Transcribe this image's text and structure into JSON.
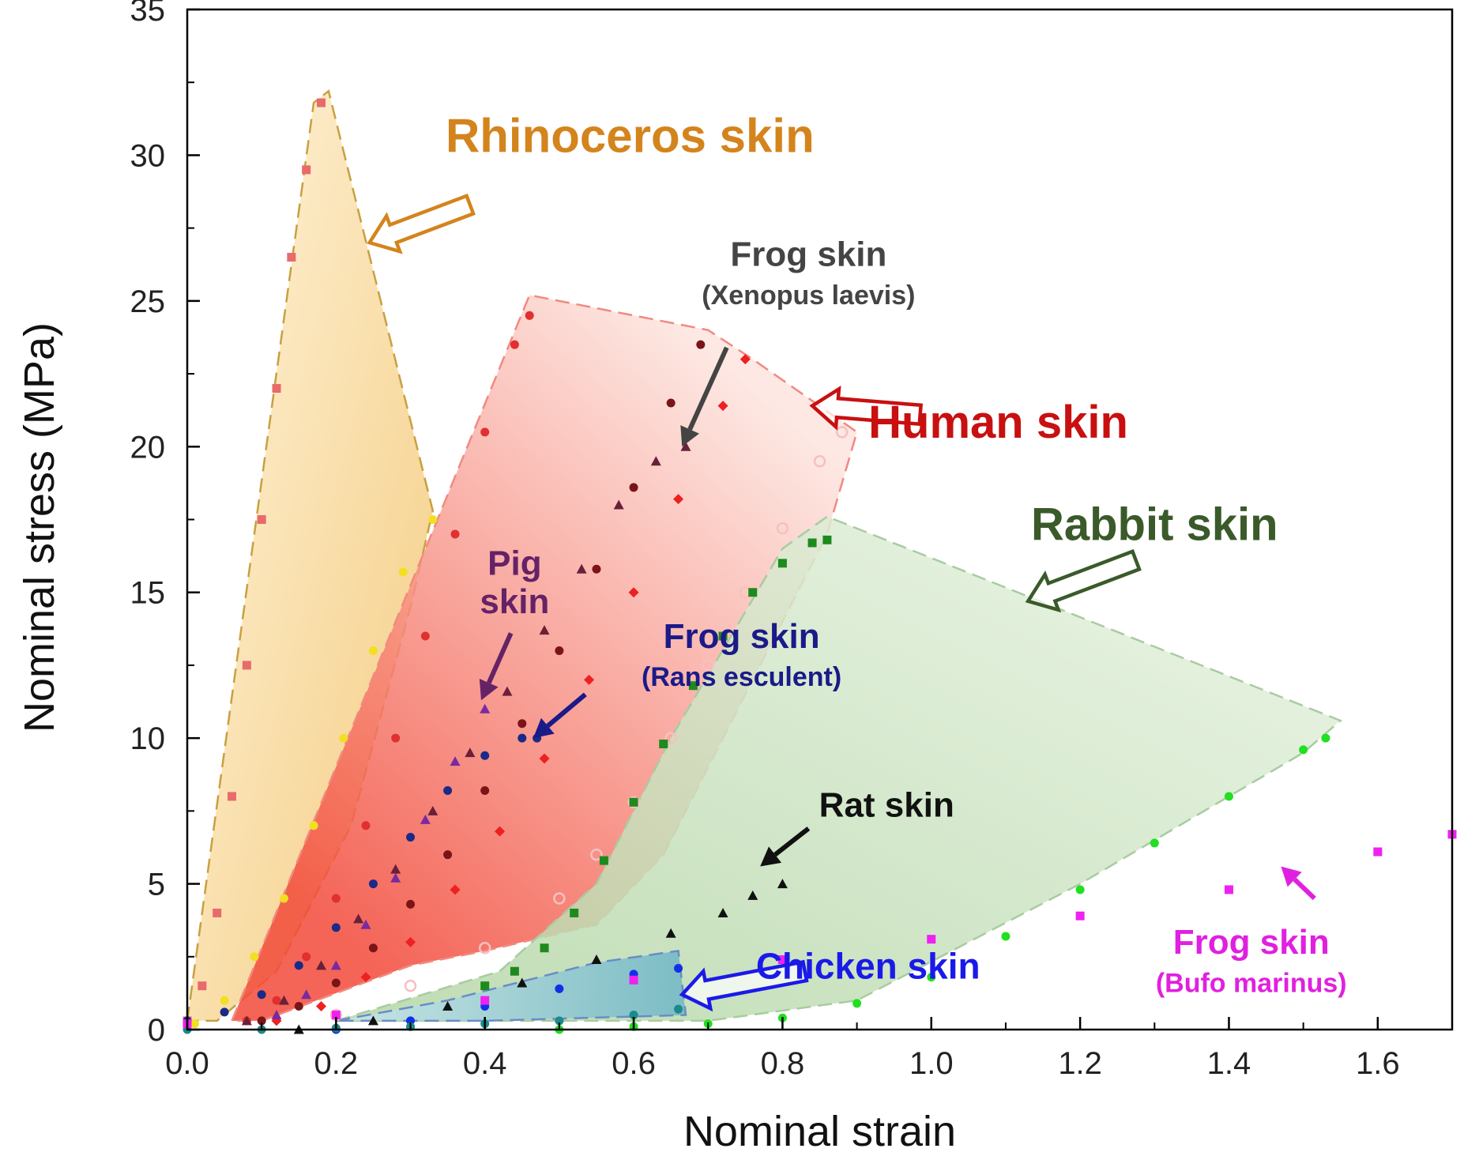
{
  "chart_data": {
    "type": "scatter",
    "title": "",
    "xlabel": "Nominal strain",
    "ylabel": "Nominal stress (MPa)",
    "xlim": [
      0.0,
      1.7
    ],
    "ylim": [
      0,
      35
    ],
    "x_ticks": [
      0.0,
      0.2,
      0.4,
      0.6,
      0.8,
      1.0,
      1.2,
      1.4,
      1.6
    ],
    "x_tick_labels": [
      "0.0",
      "0.2",
      "0.4",
      "0.6",
      "0.8",
      "1.0",
      "1.2",
      "1.4",
      "1.6"
    ],
    "y_ticks": [
      0,
      5,
      10,
      15,
      20,
      25,
      30,
      35
    ],
    "y_tick_labels": [
      "0",
      "5",
      "10",
      "15",
      "20",
      "25",
      "30",
      "35"
    ],
    "grid": false,
    "legend": "none",
    "regions": [
      {
        "label": "Rhinoceros skin",
        "color": "#f2c268",
        "edge": "#c8a040",
        "polygon": [
          [
            0.0,
            0.3
          ],
          [
            0.17,
            31.8
          ],
          [
            0.19,
            32.2
          ],
          [
            0.33,
            17.8
          ],
          [
            0.3,
            14.5
          ],
          [
            0.22,
            7.0
          ],
          [
            0.12,
            2.0
          ],
          [
            0.04,
            0.3
          ]
        ]
      },
      {
        "label": "Human skin",
        "color": "#f47060",
        "edge": "#f08a80",
        "polygon": [
          [
            0.06,
            0.3
          ],
          [
            0.46,
            25.2
          ],
          [
            0.7,
            24.0
          ],
          [
            0.76,
            23.0
          ],
          [
            0.9,
            20.5
          ],
          [
            0.86,
            17.0
          ],
          [
            0.72,
            10.0
          ],
          [
            0.64,
            6.0
          ],
          [
            0.55,
            3.6
          ],
          [
            0.4,
            2.7
          ],
          [
            0.3,
            2.2
          ],
          [
            0.1,
            0.3
          ]
        ]
      },
      {
        "label": "Rabbit skin",
        "color": "#c8e2bc",
        "edge": "#a8cca0",
        "polygon": [
          [
            0.2,
            0.3
          ],
          [
            0.42,
            2.0
          ],
          [
            0.55,
            5.0
          ],
          [
            0.65,
            10.0
          ],
          [
            0.8,
            16.5
          ],
          [
            0.86,
            17.6
          ],
          [
            1.55,
            10.6
          ],
          [
            1.5,
            9.5
          ],
          [
            1.2,
            5.0
          ],
          [
            0.9,
            1.0
          ],
          [
            0.7,
            0.3
          ]
        ]
      },
      {
        "label": "Chicken skin",
        "color": "#9fcad6",
        "edge": "#6a8cc8",
        "polygon": [
          [
            0.2,
            0.3
          ],
          [
            0.35,
            1.0
          ],
          [
            0.55,
            2.3
          ],
          [
            0.66,
            2.7
          ],
          [
            0.67,
            0.5
          ],
          [
            0.4,
            0.3
          ]
        ]
      }
    ],
    "series": [
      {
        "name": "",
        "group": "Rhinoceros skin",
        "marker": "square",
        "color": "#e86a6a",
        "x": [
          0.0,
          0.02,
          0.04,
          0.06,
          0.08,
          0.1,
          0.12,
          0.14,
          0.16,
          0.18
        ],
        "y": [
          0.3,
          1.5,
          4.0,
          8.0,
          12.5,
          17.5,
          22.0,
          26.5,
          29.5,
          31.8
        ]
      },
      {
        "name": "",
        "group": "Rhinoceros skin",
        "marker": "circle",
        "color": "#f2e020",
        "x": [
          0.01,
          0.05,
          0.09,
          0.13,
          0.17,
          0.21,
          0.25,
          0.29,
          0.33
        ],
        "y": [
          0.2,
          1.0,
          2.5,
          4.5,
          7.0,
          10.0,
          13.0,
          15.7,
          17.5
        ]
      },
      {
        "name": "",
        "group": "Human skin",
        "marker": "circle",
        "color": "#e03030",
        "x": [
          0.08,
          0.12,
          0.16,
          0.2,
          0.24,
          0.28,
          0.32,
          0.36,
          0.4,
          0.44,
          0.46
        ],
        "y": [
          0.3,
          1.0,
          2.5,
          4.5,
          7.0,
          10.0,
          13.5,
          17.0,
          20.5,
          23.5,
          24.5
        ]
      },
      {
        "name": "",
        "group": "Human skin",
        "marker": "circle",
        "color": "#7a1418",
        "x": [
          0.1,
          0.15,
          0.2,
          0.25,
          0.3,
          0.35,
          0.4,
          0.45,
          0.5,
          0.55,
          0.6,
          0.65,
          0.69
        ],
        "y": [
          0.3,
          0.8,
          1.6,
          2.8,
          4.3,
          6.0,
          8.2,
          10.5,
          13.0,
          15.8,
          18.6,
          21.5,
          23.5
        ]
      },
      {
        "name": "",
        "group": "Human skin",
        "marker": "diamond",
        "color": "#ee2020",
        "x": [
          0.12,
          0.18,
          0.24,
          0.3,
          0.36,
          0.42,
          0.48,
          0.54,
          0.6,
          0.66,
          0.72,
          0.75
        ],
        "y": [
          0.3,
          0.8,
          1.8,
          3.0,
          4.8,
          6.8,
          9.3,
          12.0,
          15.0,
          18.2,
          21.4,
          23.0
        ]
      },
      {
        "name": "",
        "group": "Human skin",
        "marker": "flower",
        "color": "#f6c0c0",
        "x": [
          0.2,
          0.3,
          0.4,
          0.5,
          0.55,
          0.6,
          0.65,
          0.7,
          0.75,
          0.8,
          0.85,
          0.88
        ],
        "y": [
          0.5,
          1.5,
          2.8,
          4.5,
          6.0,
          7.8,
          10.0,
          12.5,
          15.0,
          17.2,
          19.5,
          20.5
        ]
      },
      {
        "name": "",
        "group": "Frog skin (Xenopus laevis)",
        "marker": "triangle",
        "color": "#6a2038",
        "x": [
          0.08,
          0.13,
          0.18,
          0.23,
          0.28,
          0.33,
          0.38,
          0.43,
          0.48,
          0.53,
          0.58,
          0.63,
          0.67
        ],
        "y": [
          0.3,
          1.0,
          2.2,
          3.8,
          5.5,
          7.5,
          9.5,
          11.6,
          13.7,
          15.8,
          18.0,
          19.5,
          20.0
        ]
      },
      {
        "name": "",
        "group": "Pig skin",
        "marker": "triangle",
        "color": "#7a2aa0",
        "x": [
          0.12,
          0.16,
          0.2,
          0.24,
          0.28,
          0.32,
          0.36,
          0.4
        ],
        "y": [
          0.5,
          1.2,
          2.2,
          3.6,
          5.2,
          7.2,
          9.2,
          11.0
        ]
      },
      {
        "name": "",
        "group": "Frog skin (Rans esculent)",
        "marker": "circle",
        "color": "#1a2a88",
        "x": [
          0.0,
          0.05,
          0.1,
          0.15,
          0.2,
          0.25,
          0.3,
          0.35,
          0.4,
          0.45,
          0.47
        ],
        "y": [
          0.3,
          0.6,
          1.2,
          2.2,
          3.5,
          5.0,
          6.6,
          8.2,
          9.4,
          10.0,
          10.0
        ]
      },
      {
        "name": "",
        "group": "Rabbit skin",
        "marker": "square",
        "color": "#1e8a1e",
        "x": [
          0.4,
          0.44,
          0.48,
          0.52,
          0.56,
          0.6,
          0.64,
          0.68,
          0.72,
          0.76,
          0.8,
          0.84,
          0.86
        ],
        "y": [
          1.5,
          2.0,
          2.8,
          4.0,
          5.8,
          7.8,
          9.8,
          11.8,
          13.5,
          15.0,
          16.0,
          16.7,
          16.8
        ]
      },
      {
        "name": "",
        "group": "Rabbit skin",
        "marker": "circle",
        "color": "#20e020",
        "x": [
          0.5,
          0.6,
          0.7,
          0.8,
          0.9,
          1.0,
          1.1,
          1.2,
          1.3,
          1.4,
          1.5,
          1.53
        ],
        "y": [
          0.0,
          0.1,
          0.2,
          0.4,
          0.9,
          1.8,
          3.2,
          4.8,
          6.4,
          8.0,
          9.6,
          10.0
        ]
      },
      {
        "name": "",
        "group": "Rat skin",
        "marker": "triangle",
        "color": "#111111",
        "x": [
          0.15,
          0.25,
          0.35,
          0.45,
          0.55,
          0.65,
          0.72,
          0.76,
          0.8
        ],
        "y": [
          0.0,
          0.3,
          0.8,
          1.6,
          2.4,
          3.3,
          4.0,
          4.6,
          5.0
        ]
      },
      {
        "name": "",
        "group": "Chicken skin",
        "marker": "circle",
        "color": "#1030e8",
        "x": [
          0.2,
          0.3,
          0.4,
          0.5,
          0.6,
          0.66
        ],
        "y": [
          0.0,
          0.3,
          0.8,
          1.4,
          1.9,
          2.1
        ]
      },
      {
        "name": "",
        "group": "Chicken skin",
        "marker": "circle",
        "color": "#1a8a8a",
        "x": [
          0.0,
          0.1,
          0.2,
          0.3,
          0.4,
          0.5,
          0.6,
          0.66
        ],
        "y": [
          0.0,
          0.0,
          0.05,
          0.1,
          0.2,
          0.3,
          0.5,
          0.7
        ]
      },
      {
        "name": "",
        "group": "Frog skin (Bufo marinus)",
        "marker": "square",
        "color": "#f020f0",
        "x": [
          0.0,
          0.2,
          0.4,
          0.6,
          0.8,
          1.0,
          1.2,
          1.4,
          1.6,
          1.7
        ],
        "y": [
          0.2,
          0.5,
          1.0,
          1.7,
          2.4,
          3.1,
          3.9,
          4.8,
          6.1,
          6.7
        ]
      }
    ],
    "annotations": [
      {
        "text": "Rhinoceros skin",
        "sub": "",
        "color": "#d4841c",
        "size": 60,
        "text_at": [
          0.595,
          30.1
        ],
        "arrow_from": [
          0.38,
          28.3
        ],
        "arrow_to": [
          0.245,
          27.0
        ],
        "arrow_style": "hollow"
      },
      {
        "text": "Frog skin",
        "sub": "(Xenopus laevis)",
        "color": "#444444",
        "size": 44,
        "text_at": [
          0.835,
          26.2
        ],
        "arrow_from": [
          0.725,
          23.4
        ],
        "arrow_to": [
          0.665,
          20.0
        ],
        "arrow_style": "solid"
      },
      {
        "text": "Human skin",
        "sub": "",
        "color": "#c81010",
        "size": 58,
        "text_at": [
          1.09,
          20.3
        ],
        "arrow_from": [
          0.985,
          21.1
        ],
        "arrow_to": [
          0.84,
          21.4
        ],
        "arrow_style": "hollow"
      },
      {
        "text": "Rabbit skin",
        "sub": "",
        "color": "#3a5a2a",
        "size": 58,
        "text_at": [
          1.3,
          16.8
        ],
        "arrow_from": [
          1.275,
          16.1
        ],
        "arrow_to": [
          1.13,
          14.7
        ],
        "arrow_style": "hollow"
      },
      {
        "text": "Pig",
        "sub": "skin",
        "color": "#662266",
        "size": 44,
        "text_at": [
          0.44,
          15.6
        ],
        "arrow_from": [
          0.435,
          13.6
        ],
        "arrow_to": [
          0.395,
          11.3
        ],
        "arrow_style": "solid"
      },
      {
        "text": "Frog skin",
        "sub": "(Rans esculent)",
        "color": "#1a1a88",
        "size": 44,
        "text_at": [
          0.745,
          13.1
        ],
        "arrow_from": [
          0.535,
          11.5
        ],
        "arrow_to": [
          0.465,
          10.0
        ],
        "arrow_style": "solid"
      },
      {
        "text": "Rat skin",
        "sub": "",
        "color": "#111111",
        "size": 44,
        "text_at": [
          0.94,
          7.3
        ],
        "arrow_from": [
          0.835,
          6.9
        ],
        "arrow_to": [
          0.77,
          5.6
        ],
        "arrow_style": "solid"
      },
      {
        "text": "Chicken skin",
        "sub": "",
        "color": "#1a1ae8",
        "size": 46,
        "text_at": [
          0.915,
          1.75
        ],
        "arrow_from": [
          0.83,
          2.0
        ],
        "arrow_to": [
          0.665,
          1.2
        ],
        "arrow_style": "hollow"
      },
      {
        "text": "Frog skin",
        "sub": "(Bufo marinus)",
        "color": "#e020e0",
        "size": 44,
        "text_at": [
          1.43,
          2.6
        ],
        "arrow_from": [
          1.515,
          4.5
        ],
        "arrow_to": [
          1.47,
          5.6
        ],
        "arrow_style": "solid"
      }
    ]
  }
}
